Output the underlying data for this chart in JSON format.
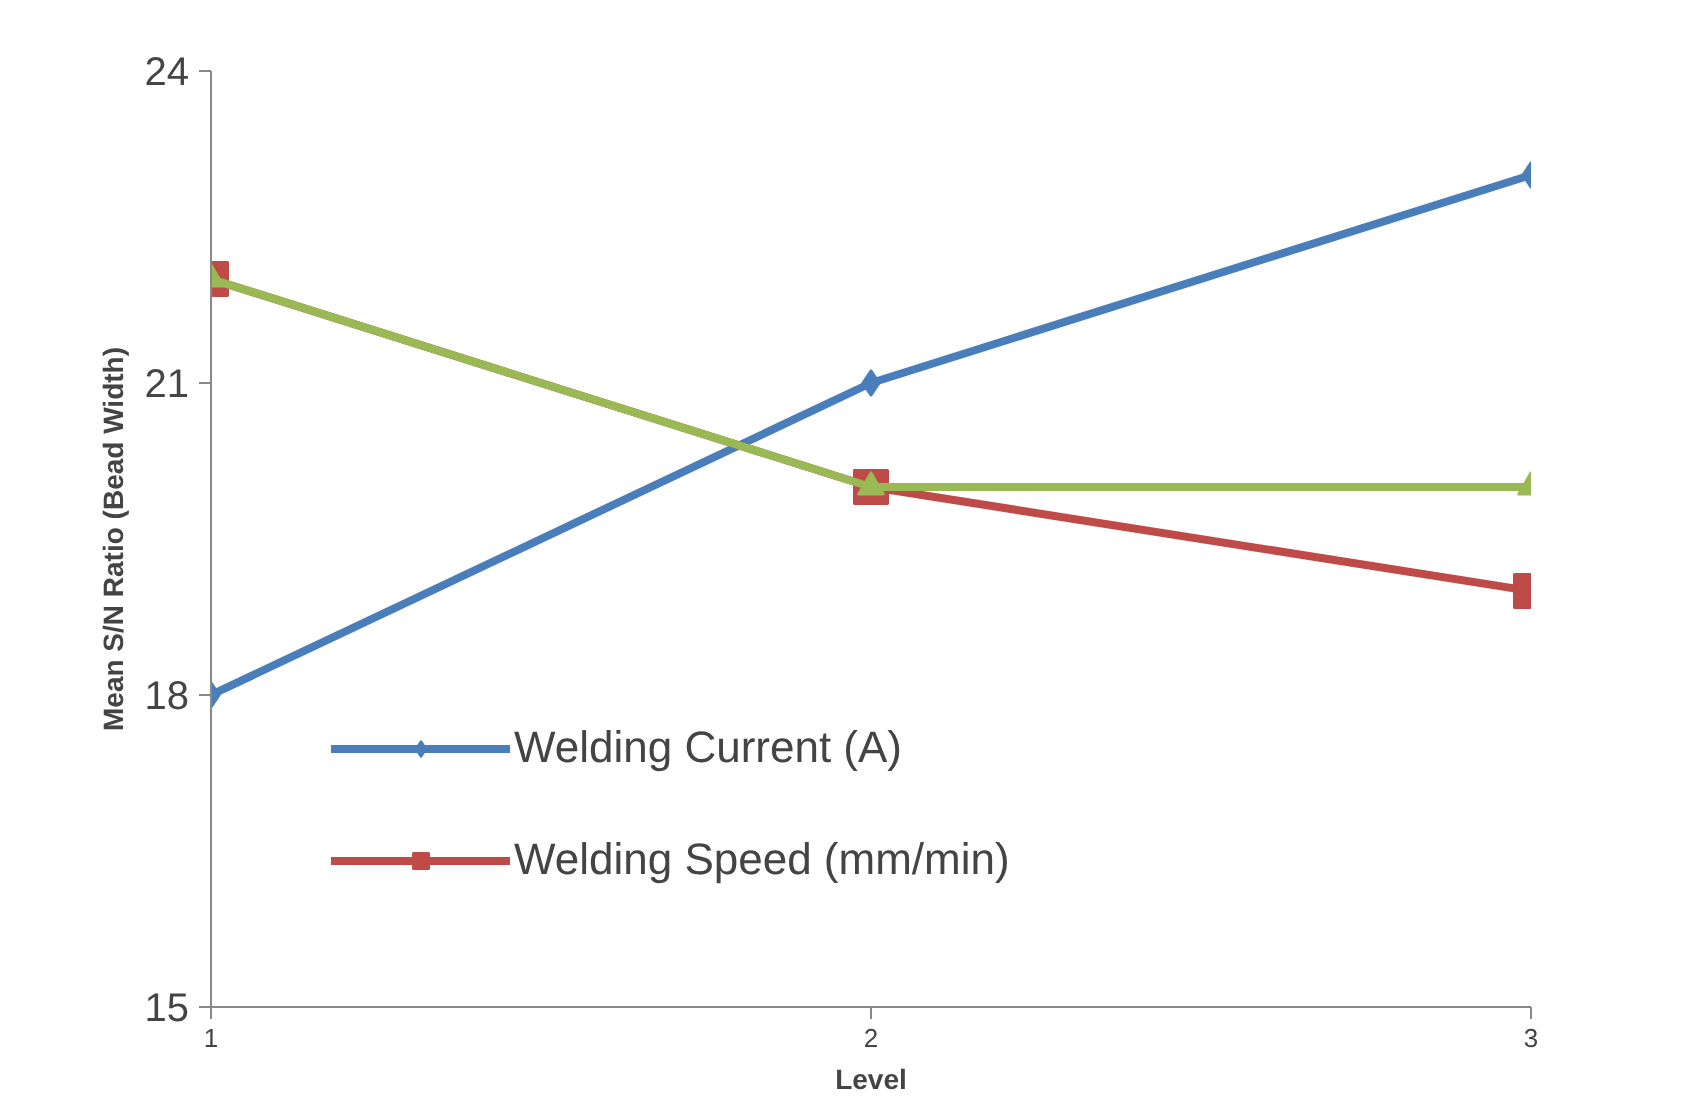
{
  "chart_data": {
    "type": "line",
    "xlabel": "Level",
    "ylabel": "Mean S/N Ratio (Bead Width)",
    "x": [
      1,
      2,
      3
    ],
    "xlim": [
      1,
      3
    ],
    "xticks": [
      1,
      2,
      3
    ],
    "ylim": [
      15,
      24
    ],
    "yticks": [
      15,
      18,
      21,
      24
    ],
    "grid": false,
    "legend": "bottom left",
    "line_style": "solid",
    "series": [
      {
        "name": "Welding Current (A)",
        "color": "#4a7ebb",
        "marker": "diamond",
        "values": [
          18,
          21,
          23
        ]
      },
      {
        "name": "Welding Speed (mm/min)",
        "color": "#be4b48",
        "marker": "square",
        "values": [
          22,
          20,
          19
        ]
      },
      {
        "color": "#98b954",
        "marker": "triangle",
        "values": [
          22,
          20,
          20
        ]
      }
    ]
  }
}
